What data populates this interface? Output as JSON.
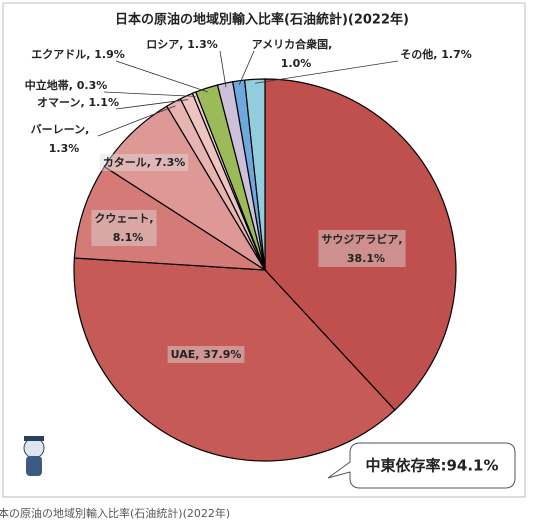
{
  "chart_data": {
    "type": "pie",
    "title": "日本の原油の地域別輸入比率(石油統計)(2022年)",
    "values": [
      38.1,
      37.9,
      8.1,
      7.3,
      1.3,
      1.1,
      0.3,
      1.9,
      1.3,
      1.0,
      1.7
    ],
    "value_labels": [
      [
        "サウジアラビア,",
        "38.1%"
      ],
      [
        "UAE, 37.9%"
      ],
      [
        "クウェート,",
        "8.1%"
      ],
      [
        "カタール, 7.3%"
      ],
      [
        "バーレーン,",
        "1.3%"
      ],
      [
        "オマーン, 1.1%"
      ],
      [
        "中立地帯, 0.3%"
      ],
      [
        "エクアドル, 1.9%"
      ],
      [
        "ロシア, 1.3%"
      ],
      [
        "アメリカ合衆国,",
        "1.0%"
      ],
      [
        "その他, 1.7%"
      ]
    ],
    "colors": [
      "#c0504d",
      "#c65a57",
      "#d47b78",
      "#de9896",
      "#e8b4b2",
      "#eec4c3",
      "#f2d2d1",
      "#9bbb59",
      "#ccc0da",
      "#6fa8dc",
      "#93cddd"
    ],
    "annotation": "中東依存率:94.1%",
    "caption": "本の原油の地域別輸入比率(石油統計)(2022年)"
  }
}
